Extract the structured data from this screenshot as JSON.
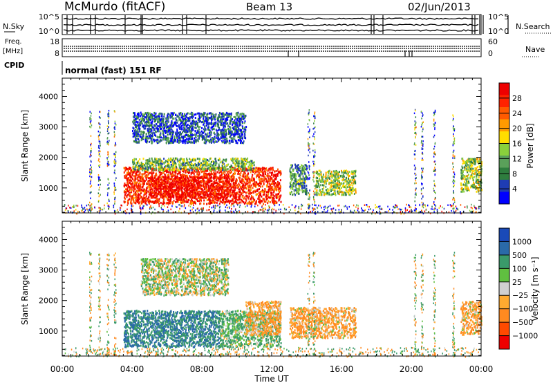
{
  "header": {
    "station": "McMurdo (fitACF)",
    "beam": "Beam 13",
    "date": "02/Jun/2013"
  },
  "ticker_panels": {
    "nsky_label": "N.Sky",
    "nsky_ticks": [
      "10^5",
      "10^0"
    ],
    "nsearch_label": "N.Search",
    "nsearch_ticks": [
      "10^5",
      "10^0"
    ],
    "freq_label": "Freq.",
    "freq_unit": "[MHz]",
    "freq_ticks": [
      "18",
      "8"
    ],
    "nave_label": "Nave",
    "nave_ticks": [
      "60",
      "0"
    ],
    "cpid_label": "CPID",
    "cpid_value": "normal (fast) 151 RF"
  },
  "colors": {
    "power_scale": [
      "#0000ff",
      "#1f3cb4",
      "#2e7d3e",
      "#5aa05a",
      "#8ad03c",
      "#ffdd00",
      "#ff9a00",
      "#ff5a00",
      "#ff2200",
      "#ee0000"
    ],
    "velocity_scale": [
      "#ee0000",
      "#ff4a00",
      "#ff8a20",
      "#ffaa30",
      "#d0d0d0",
      "#60c040",
      "#3a9a6a",
      "#2a6aa8",
      "#1a4ab8"
    ]
  },
  "chart_data": [
    {
      "type": "heatmap",
      "title": "",
      "xlabel": "Time UT",
      "ylabel": "Slant Range [km]",
      "xlim": [
        "00:00",
        "24:00"
      ],
      "ylim": [
        180,
        4600
      ],
      "x_ticks": [
        "00:00",
        "04:00",
        "08:00",
        "12:00",
        "16:00",
        "20:00",
        "00:00"
      ],
      "y_ticks": [
        "1000",
        "2000",
        "3000",
        "4000"
      ],
      "colorbar": {
        "label": "Power [dB]",
        "range": [
          0,
          32
        ],
        "ticks": [
          "4",
          "8",
          "12",
          "16",
          "20",
          "24",
          "28"
        ]
      },
      "regions": [
        {
          "t0": 3.5,
          "t1": 12.5,
          "r0": 500,
          "r1": 1700,
          "value": 28
        },
        {
          "t0": 5.0,
          "t1": 9.5,
          "r0": 700,
          "r1": 1400,
          "value": 30
        },
        {
          "t0": 4.0,
          "t1": 11.0,
          "r0": 1600,
          "r1": 2000,
          "value": 12
        },
        {
          "t0": 13.0,
          "t1": 14.0,
          "r0": 800,
          "r1": 1800,
          "value": 10
        },
        {
          "t0": 14.5,
          "t1": 16.8,
          "r0": 800,
          "r1": 1600,
          "value": 14
        },
        {
          "t0": 22.8,
          "t1": 24.0,
          "r0": 900,
          "r1": 2000,
          "value": 14
        },
        {
          "t0": 4.0,
          "t1": 10.5,
          "r0": 2500,
          "r1": 3500,
          "value": 6
        }
      ]
    },
    {
      "type": "heatmap",
      "title": "",
      "xlabel": "Time UT",
      "ylabel": "Slant Range [km]",
      "xlim": [
        "00:00",
        "24:00"
      ],
      "ylim": [
        180,
        4600
      ],
      "x_ticks": [
        "00:00",
        "04:00",
        "08:00",
        "12:00",
        "16:00",
        "20:00",
        "00:00"
      ],
      "y_ticks": [
        "1000",
        "2000",
        "3000",
        "4000"
      ],
      "colorbar": {
        "label": "Velocity [m s⁻¹]",
        "range": [
          -1000,
          1000
        ],
        "ticks": [
          "1000",
          "500",
          "100",
          "25",
          "−25",
          "−100",
          "−500",
          "−1000"
        ]
      },
      "regions": [
        {
          "t0": 3.5,
          "t1": 9.0,
          "r0": 500,
          "r1": 1700,
          "value": 500
        },
        {
          "t0": 9.0,
          "t1": 12.5,
          "r0": 500,
          "r1": 1700,
          "value": 100
        },
        {
          "t0": 10.5,
          "t1": 12.5,
          "r0": 900,
          "r1": 2000,
          "value": -100
        },
        {
          "t0": 4.5,
          "t1": 9.5,
          "r0": 2200,
          "r1": 3400,
          "value": 25
        },
        {
          "t0": 13.0,
          "t1": 16.8,
          "r0": 800,
          "r1": 1800,
          "value": -100
        },
        {
          "t0": 22.8,
          "t1": 24.0,
          "r0": 900,
          "r1": 2000,
          "value": -100
        }
      ]
    }
  ]
}
